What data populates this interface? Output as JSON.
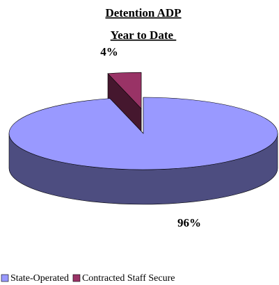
{
  "chart_data": {
    "type": "pie",
    "title": "Detention ADP",
    "subtitle": "Year to Date ",
    "categories": [
      "State-Operated",
      "Contracted Staff Secure"
    ],
    "values": [
      96,
      4
    ],
    "value_labels": [
      "96%",
      "4%"
    ],
    "colors": [
      "#9999ff",
      "#993366"
    ],
    "legend": "bottom-left"
  }
}
